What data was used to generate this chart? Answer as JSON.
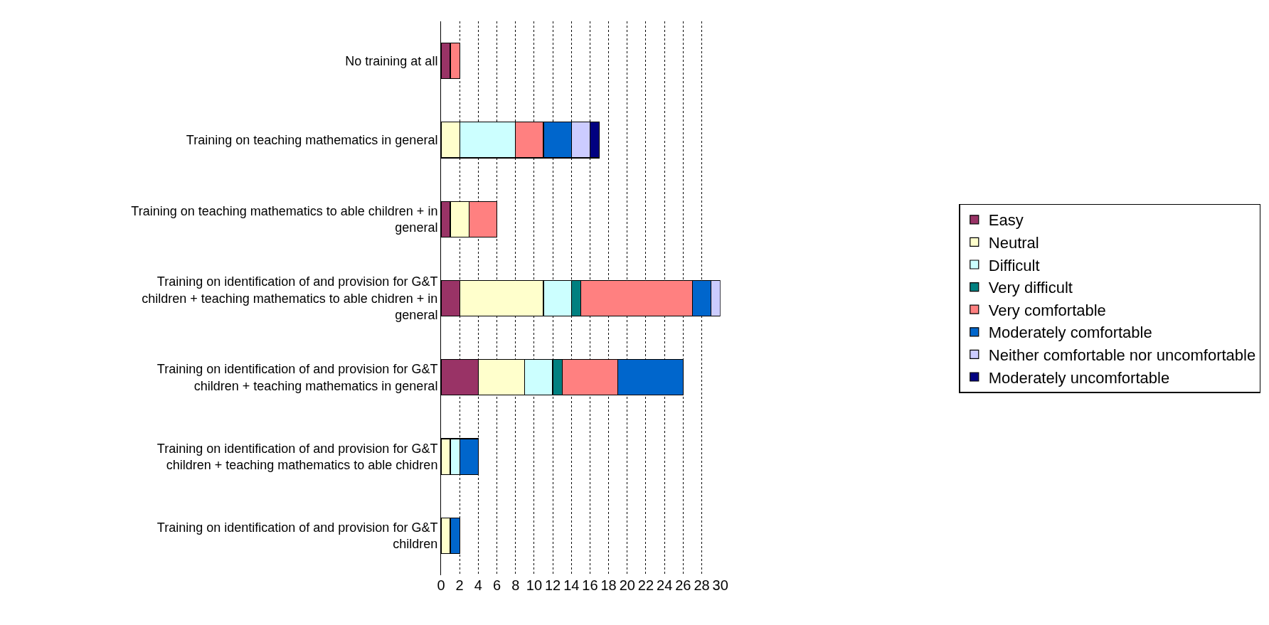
{
  "chart_data": {
    "type": "bar",
    "orientation": "horizontal",
    "stacked": true,
    "categories": [
      "No training at all",
      "Training on teaching mathematics in general",
      "Training on teaching mathematics to able children + in general",
      "Training on identification of and provision for G&T children + teaching mathematics to able chidren + in general",
      "Training on identification of and provision for G&T children + teaching mathematics in general",
      "Training on identification of and provision for G&T children + teaching mathematics to able chidren",
      "Training on identification of and provision for G&T children"
    ],
    "series": [
      {
        "name": "Easy",
        "color": "#993366",
        "values": [
          1,
          null,
          1,
          2,
          4,
          null,
          null
        ]
      },
      {
        "name": "Neutral",
        "color": "#ffffcc",
        "values": [
          null,
          2,
          2,
          9,
          5,
          1,
          1
        ]
      },
      {
        "name": "Difficult",
        "color": "#ccffff",
        "values": [
          null,
          6,
          null,
          3,
          3,
          1,
          null
        ]
      },
      {
        "name": "Very difficult",
        "color": "#008080",
        "values": [
          null,
          null,
          null,
          1,
          1,
          null,
          null
        ]
      },
      {
        "name": "Very comfortable",
        "color": "#ff8080",
        "values": [
          1,
          3,
          3,
          12,
          6,
          null,
          null
        ]
      },
      {
        "name": "Moderately comfortable",
        "color": "#0066cc",
        "values": [
          null,
          3,
          null,
          2,
          7,
          2,
          1
        ]
      },
      {
        "name": "Neither comfortable nor uncomfortable",
        "color": "#ccccff",
        "values": [
          null,
          2,
          null,
          1,
          null,
          null,
          null
        ]
      },
      {
        "name": "Moderately uncomfortable",
        "color": "#000080",
        "values": [
          null,
          1,
          null,
          null,
          null,
          null,
          null
        ]
      }
    ],
    "xlim": [
      0,
      30
    ],
    "xticks": [
      0,
      2,
      4,
      6,
      8,
      10,
      12,
      14,
      16,
      18,
      20,
      22,
      24,
      26,
      28,
      30
    ],
    "grid": "x",
    "legend": "right"
  }
}
